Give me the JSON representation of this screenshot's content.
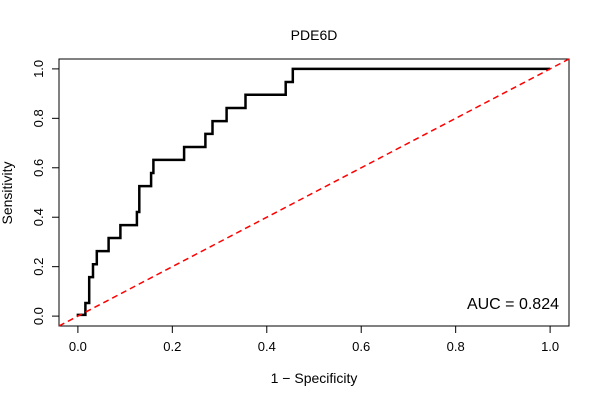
{
  "chart_data": {
    "type": "line",
    "title": "PDE6D",
    "xlabel": "1 − Specificity",
    "ylabel": "Sensitivity",
    "xlim": [
      -0.04,
      1.04
    ],
    "ylim": [
      -0.04,
      1.04
    ],
    "xticks": [
      0.0,
      0.2,
      0.4,
      0.6,
      0.8,
      1.0
    ],
    "xtick_labels": [
      "0.0",
      "0.2",
      "0.4",
      "0.6",
      "0.8",
      "1.0"
    ],
    "yticks": [
      0.0,
      0.2,
      0.4,
      0.6,
      0.8,
      1.0
    ],
    "ytick_labels": [
      "0.0",
      "0.2",
      "0.4",
      "0.6",
      "0.8",
      "1.0"
    ],
    "grid": false,
    "annotation": "AUC = 0.824",
    "series": [
      {
        "role": "roc",
        "color": "#000000",
        "style": "solid",
        "x": [
          0.0,
          0.0,
          0.016,
          0.016,
          0.024,
          0.024,
          0.032,
          0.032,
          0.04,
          0.04,
          0.048,
          0.048,
          0.065,
          0.065,
          0.09,
          0.09,
          0.125,
          0.125,
          0.13,
          0.13,
          0.155,
          0.155,
          0.16,
          0.16,
          0.225,
          0.225,
          0.27,
          0.27,
          0.285,
          0.285,
          0.315,
          0.315,
          0.355,
          0.355,
          0.44,
          0.44,
          0.455,
          0.455,
          1.0
        ],
        "y": [
          0.0,
          0.005,
          0.005,
          0.053,
          0.053,
          0.158,
          0.158,
          0.21,
          0.21,
          0.263,
          0.263,
          0.263,
          0.263,
          0.316,
          0.316,
          0.368,
          0.368,
          0.421,
          0.421,
          0.526,
          0.526,
          0.579,
          0.579,
          0.632,
          0.632,
          0.684,
          0.684,
          0.737,
          0.737,
          0.789,
          0.789,
          0.842,
          0.842,
          0.895,
          0.895,
          0.947,
          0.947,
          1.0,
          1.0
        ]
      },
      {
        "role": "chance-diagonal",
        "color": "#ff0000",
        "style": "dashed",
        "x": [
          -0.04,
          1.04
        ],
        "y": [
          -0.04,
          1.04
        ]
      }
    ]
  }
}
